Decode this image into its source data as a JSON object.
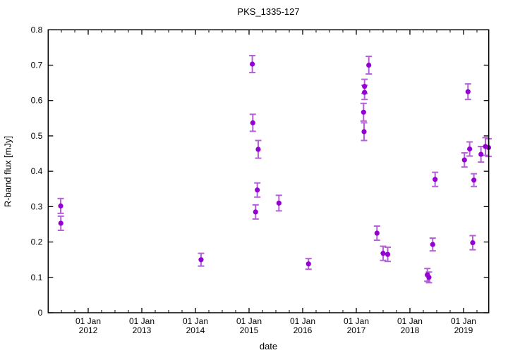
{
  "title": "PKS_1335-127",
  "axes": {
    "x": {
      "label": "date",
      "minor_step_years": 0.25,
      "ticks": [
        {
          "v": 2012,
          "line1": "01 Jan",
          "line2": "2012"
        },
        {
          "v": 2013,
          "line1": "01 Jan",
          "line2": "2013"
        },
        {
          "v": 2014,
          "line1": "01 Jan",
          "line2": "2014"
        },
        {
          "v": 2015,
          "line1": "01 Jan",
          "line2": "2015"
        },
        {
          "v": 2016,
          "line1": "01 Jan",
          "line2": "2016"
        },
        {
          "v": 2017,
          "line1": "01 Jan",
          "line2": "2017"
        },
        {
          "v": 2018,
          "line1": "01 Jan",
          "line2": "2018"
        },
        {
          "v": 2019,
          "line1": "01 Jan",
          "line2": "2019"
        }
      ]
    },
    "y": {
      "label": "R-band flux [mJy]",
      "ticks": [
        {
          "v": 0.0,
          "label": "0"
        },
        {
          "v": 0.1,
          "label": "0.1"
        },
        {
          "v": 0.2,
          "label": "0.2"
        },
        {
          "v": 0.3,
          "label": "0.3"
        },
        {
          "v": 0.4,
          "label": "0.4"
        },
        {
          "v": 0.5,
          "label": "0.5"
        },
        {
          "v": 0.6,
          "label": "0.6"
        },
        {
          "v": 0.7,
          "label": "0.7"
        },
        {
          "v": 0.8,
          "label": "0.8"
        }
      ]
    }
  },
  "chart_data": {
    "type": "scatter",
    "title": "PKS_1335-127",
    "xlabel": "date",
    "ylabel": "R-band flux [mJy]",
    "x_unit": "decimal_year",
    "xlim": [
      2011.254,
      2019.47
    ],
    "ylim": [
      0,
      0.8
    ],
    "grid": false,
    "legend": null,
    "marker_color": "#9400d3",
    "errorbar_color": "#b55fd9",
    "border_color": "#000000",
    "points": [
      {
        "x": 2011.487,
        "y": 0.302,
        "err": 0.021
      },
      {
        "x": 2011.49,
        "y": 0.253,
        "err": 0.02
      },
      {
        "x": 2014.105,
        "y": 0.15,
        "err": 0.018
      },
      {
        "x": 2015.061,
        "y": 0.703,
        "err": 0.024
      },
      {
        "x": 2015.07,
        "y": 0.537,
        "err": 0.024
      },
      {
        "x": 2015.122,
        "y": 0.285,
        "err": 0.02
      },
      {
        "x": 2015.154,
        "y": 0.347,
        "err": 0.02
      },
      {
        "x": 2015.171,
        "y": 0.462,
        "err": 0.025
      },
      {
        "x": 2015.557,
        "y": 0.31,
        "err": 0.022
      },
      {
        "x": 2016.109,
        "y": 0.138,
        "err": 0.015
      },
      {
        "x": 2017.136,
        "y": 0.567,
        "err": 0.025
      },
      {
        "x": 2017.145,
        "y": 0.512,
        "err": 0.025
      },
      {
        "x": 2017.154,
        "y": 0.64,
        "err": 0.02
      },
      {
        "x": 2017.154,
        "y": 0.623,
        "err": 0.02
      },
      {
        "x": 2017.233,
        "y": 0.7,
        "err": 0.025
      },
      {
        "x": 2017.386,
        "y": 0.225,
        "err": 0.02
      },
      {
        "x": 2017.5,
        "y": 0.168,
        "err": 0.02
      },
      {
        "x": 2017.586,
        "y": 0.165,
        "err": 0.02
      },
      {
        "x": 2018.325,
        "y": 0.107,
        "err": 0.018
      },
      {
        "x": 2018.355,
        "y": 0.1,
        "err": 0.015
      },
      {
        "x": 2018.425,
        "y": 0.193,
        "err": 0.018
      },
      {
        "x": 2018.47,
        "y": 0.377,
        "err": 0.02
      },
      {
        "x": 2019.017,
        "y": 0.432,
        "err": 0.02
      },
      {
        "x": 2019.083,
        "y": 0.625,
        "err": 0.022
      },
      {
        "x": 2019.114,
        "y": 0.463,
        "err": 0.02
      },
      {
        "x": 2019.171,
        "y": 0.198,
        "err": 0.02
      },
      {
        "x": 2019.193,
        "y": 0.375,
        "err": 0.018
      },
      {
        "x": 2019.325,
        "y": 0.448,
        "err": 0.022
      },
      {
        "x": 2019.408,
        "y": 0.47,
        "err": 0.025
      },
      {
        "x": 2019.467,
        "y": 0.467,
        "err": 0.025
      }
    ]
  }
}
